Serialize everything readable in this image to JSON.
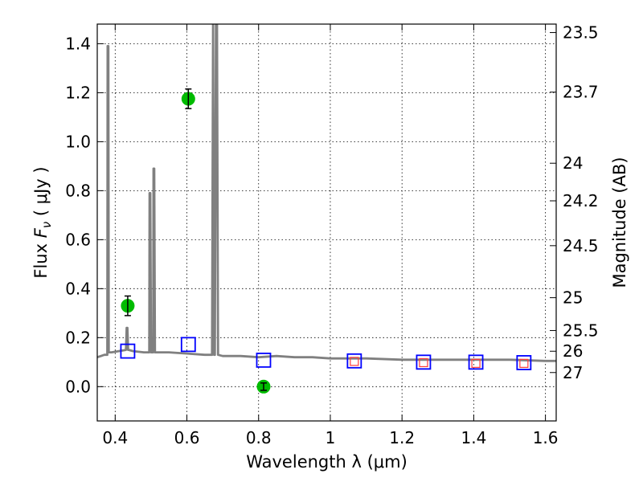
{
  "chart_data": {
    "type": "scatter",
    "xlabel": "Wavelength  λ (μm)",
    "ylabel": "Flux  F_ν  ( μJy )",
    "ylabel_right": "Magnitude (AB)",
    "xlim": [
      0.35,
      1.63
    ],
    "ylim": [
      -0.14,
      1.48
    ],
    "x_ticks": [
      0.4,
      0.6,
      0.8,
      1.0,
      1.2,
      1.4,
      1.6
    ],
    "x_tick_labels": [
      "0.4",
      "0.6",
      "0.8",
      "1",
      "1.2",
      "1.4",
      "1.6"
    ],
    "y_ticks": [
      0.0,
      0.2,
      0.4,
      0.6,
      0.8,
      1.0,
      1.2,
      1.4
    ],
    "y_tick_labels": [
      "0.0",
      "0.2",
      "0.4",
      "0.6",
      "0.8",
      "1.0",
      "1.2",
      "1.4"
    ],
    "right_ticks": [
      {
        "label": "23.5",
        "mag": 23.5
      },
      {
        "label": "23.7",
        "mag": 23.7
      },
      {
        "label": "24",
        "mag": 24.0
      },
      {
        "label": "24.2",
        "mag": 24.2
      },
      {
        "label": "24.5",
        "mag": 24.5
      },
      {
        "label": "25",
        "mag": 25.0
      },
      {
        "label": "25.5",
        "mag": 25.5
      },
      {
        "label": "26",
        "mag": 26.0
      },
      {
        "label": "27",
        "mag": 27.0
      }
    ],
    "grid": true,
    "colors": {
      "model": "#808080",
      "observed": "#00bb00",
      "model_band": "#0000ff",
      "upper_limit": "#ff3b3b"
    },
    "series": [
      {
        "kind": "line",
        "x": [
          0.35,
          0.37,
          0.378,
          0.379,
          0.381,
          0.382,
          0.39,
          0.41,
          0.43,
          0.432,
          0.434,
          0.436,
          0.438,
          0.45,
          0.48,
          0.495,
          0.496,
          0.498,
          0.5,
          0.506,
          0.507,
          0.509,
          0.511,
          0.52,
          0.55,
          0.6,
          0.65,
          0.67,
          0.673,
          0.676,
          0.678,
          0.681,
          0.684,
          0.687,
          0.7,
          0.75,
          0.8,
          0.85,
          0.9,
          0.95,
          1.0,
          1.1,
          1.2,
          1.3,
          1.4,
          1.5,
          1.6,
          1.63
        ],
        "y": [
          0.12,
          0.13,
          0.13,
          1.39,
          1.39,
          0.14,
          0.14,
          0.145,
          0.15,
          0.24,
          0.24,
          0.15,
          0.15,
          0.145,
          0.14,
          0.14,
          0.79,
          0.79,
          0.14,
          0.14,
          0.89,
          0.89,
          0.14,
          0.14,
          0.14,
          0.135,
          0.13,
          0.13,
          1.48,
          0.13,
          0.13,
          1.48,
          1.48,
          0.13,
          0.125,
          0.125,
          0.12,
          0.125,
          0.12,
          0.12,
          0.115,
          0.115,
          0.11,
          0.11,
          0.11,
          0.11,
          0.105,
          0.105
        ]
      },
      {
        "kind": "points",
        "x": [
          0.435,
          0.604,
          0.814
        ],
        "y": [
          0.33,
          1.175,
          0.0
        ],
        "err": [
          0.04,
          0.04,
          0.015
        ]
      },
      {
        "kind": "open_squares",
        "x": [
          0.435,
          0.604,
          0.814,
          1.067,
          1.26,
          1.406,
          1.54
        ],
        "y": [
          0.145,
          0.172,
          0.108,
          0.105,
          0.1,
          0.1,
          0.098
        ]
      },
      {
        "kind": "small_squares",
        "x": [
          1.067,
          1.26,
          1.406,
          1.54
        ],
        "y": [
          0.103,
          0.098,
          0.095,
          0.095
        ]
      }
    ]
  }
}
